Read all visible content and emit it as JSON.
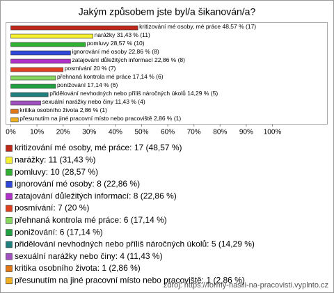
{
  "chart_data": {
    "type": "barh",
    "title": "Jakým způsobem jste byl/a šikanován/a?",
    "categories": [
      "kritizování mé osoby, mé práce",
      "narážky",
      "pomluvy",
      "ignorování mé osoby",
      "zatajování důležitých informací",
      "posmívání",
      "přehnaná kontrola mé práce",
      "ponižování",
      "přidělování nevhodných nebo příliš náročných úkolů",
      "sexuální narážky nebo činy",
      "kritika osobního života",
      "přesunutím na jiné pracovní místo nebo pracoviště"
    ],
    "values": [
      48.57,
      31.43,
      28.57,
      22.86,
      22.86,
      20,
      17.14,
      17.14,
      14.29,
      11.43,
      2.86,
      2.86
    ],
    "value_labels": [
      "kritizování mé osoby, mé práce 48,57 % (17)",
      "narážky 31,43 % (11)",
      "pomluvy 28,57 % (10)",
      "ignorování mé osoby 22,86 % (8)",
      "zatajování důležitých informací 22,86 % (8)",
      "posmívání 20 % (7)",
      "přehnaná kontrola mé práce 17,14 % (6)",
      "ponižování 17,14 % (6)",
      "přidělování nevhodných nebo příliš náročných úkolů 14,29 % (5)",
      "sexuální narážky nebo činy 11,43 % (4)",
      "kritika osobního života 2,86 % (1)",
      "přesunutím na jiné pracovní místo nebo pracoviště 2,86 % (1)"
    ],
    "legend": [
      "kritizování mé osoby, mé práce: 17 (48,57 %)",
      "narážky: 11 (31,43 %)",
      "pomluvy: 10 (28,57 %)",
      "ignorování mé osoby: 8 (22,86 %)",
      "zatajování důležitých informací: 8 (22,86 %)",
      "posmívání: 7 (20 %)",
      "přehnaná kontrola mé práce: 6 (17,14 %)",
      "ponižování: 6 (17,14 %)",
      "přidělování nevhodných nebo příliš náročných úkolů: 5 (14,29 %)",
      "sexuální narážky nebo činy: 4 (11,43 %)",
      "kritika osobního života: 1 (2,86 %)",
      "přesunutím na jiné pracovní místo nebo pracoviště: 1 (2,86 %)"
    ],
    "colors": [
      "#c0281c",
      "#f5f030",
      "#30b030",
      "#3048d8",
      "#b030c8",
      "#e04020",
      "#88d860",
      "#20a040",
      "#208080",
      "#a050c0",
      "#e07818",
      "#f0b020"
    ],
    "xlim": [
      0,
      100
    ],
    "xticks": [
      {
        "value": 0,
        "label": "0%"
      },
      {
        "value": 10,
        "label": "10%"
      },
      {
        "value": 20,
        "label": "20%"
      },
      {
        "value": 30,
        "label": "30%"
      },
      {
        "value": 40,
        "label": "40%"
      },
      {
        "value": 50,
        "label": "50%"
      },
      {
        "value": 60,
        "label": "60%"
      },
      {
        "value": 70,
        "label": "70%"
      },
      {
        "value": 80,
        "label": "80%"
      },
      {
        "value": 90,
        "label": "90%"
      },
      {
        "value": 100,
        "label": "100%"
      }
    ],
    "source": "zdroj: https://formy-nasili-na-pracovisti.vyplnto.cz"
  }
}
